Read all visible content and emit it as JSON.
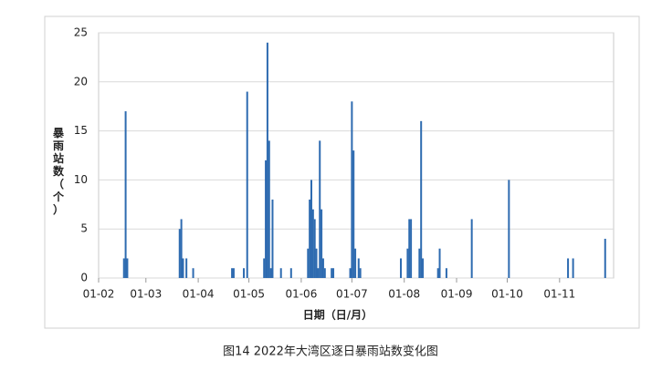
{
  "chart_data": {
    "type": "bar",
    "caption": "图14  2022年大湾区逐日暴雨站数变化图",
    "x_label": "日期（日/月）",
    "y_label": "暴雨站数（个）",
    "color": "#2e6bb0",
    "grid": true,
    "x": [
      "2022-02-16",
      "2022-02-17",
      "2022-02-18",
      "2022-03-21",
      "2022-03-22",
      "2022-03-23",
      "2022-03-25",
      "2022-03-29",
      "2022-04-21",
      "2022-04-22",
      "2022-04-28",
      "2022-04-30",
      "2022-05-10",
      "2022-05-11",
      "2022-05-12",
      "2022-05-13",
      "2022-05-14",
      "2022-05-15",
      "2022-05-20",
      "2022-05-26",
      "2022-06-05",
      "2022-06-06",
      "2022-06-07",
      "2022-06-08",
      "2022-06-09",
      "2022-06-10",
      "2022-06-11",
      "2022-06-12",
      "2022-06-13",
      "2022-06-14",
      "2022-06-15",
      "2022-06-19",
      "2022-06-20",
      "2022-06-30",
      "2022-07-01",
      "2022-07-02",
      "2022-07-03",
      "2022-07-05",
      "2022-07-06",
      "2022-07-30",
      "2022-08-03",
      "2022-08-04",
      "2022-08-05",
      "2022-08-10",
      "2022-08-11",
      "2022-08-12",
      "2022-08-21",
      "2022-08-22",
      "2022-08-26",
      "2022-09-10",
      "2022-10-02",
      "2022-11-06",
      "2022-11-09",
      "2022-11-28"
    ],
    "values": [
      2,
      17,
      2,
      5,
      6,
      2,
      2,
      1,
      1,
      1,
      1,
      19,
      2,
      12,
      24,
      14,
      1,
      8,
      1,
      1,
      3,
      8,
      10,
      7,
      6,
      3,
      1,
      14,
      7,
      2,
      1,
      1,
      1,
      1,
      18,
      13,
      3,
      2,
      1,
      2,
      3,
      6,
      6,
      3,
      16,
      2,
      1,
      3,
      1,
      6,
      10,
      2,
      2,
      4
    ],
    "xlim": [
      "2022-02-01",
      "2022-12-03"
    ],
    "xticks": [
      {
        "value": "2022-02-01",
        "label": "01-02"
      },
      {
        "value": "2022-03-01",
        "label": "01-03"
      },
      {
        "value": "2022-04-01",
        "label": "01-04"
      },
      {
        "value": "2022-05-01",
        "label": "01-05"
      },
      {
        "value": "2022-06-01",
        "label": "01-06"
      },
      {
        "value": "2022-07-01",
        "label": "01-07"
      },
      {
        "value": "2022-08-01",
        "label": "01-08"
      },
      {
        "value": "2022-09-01",
        "label": "01-09"
      },
      {
        "value": "2022-10-01",
        "label": "01-10"
      },
      {
        "value": "2022-11-01",
        "label": "01-11"
      }
    ],
    "ylim": [
      0,
      25
    ],
    "yticks": [
      0,
      5,
      10,
      15,
      20,
      25
    ]
  }
}
